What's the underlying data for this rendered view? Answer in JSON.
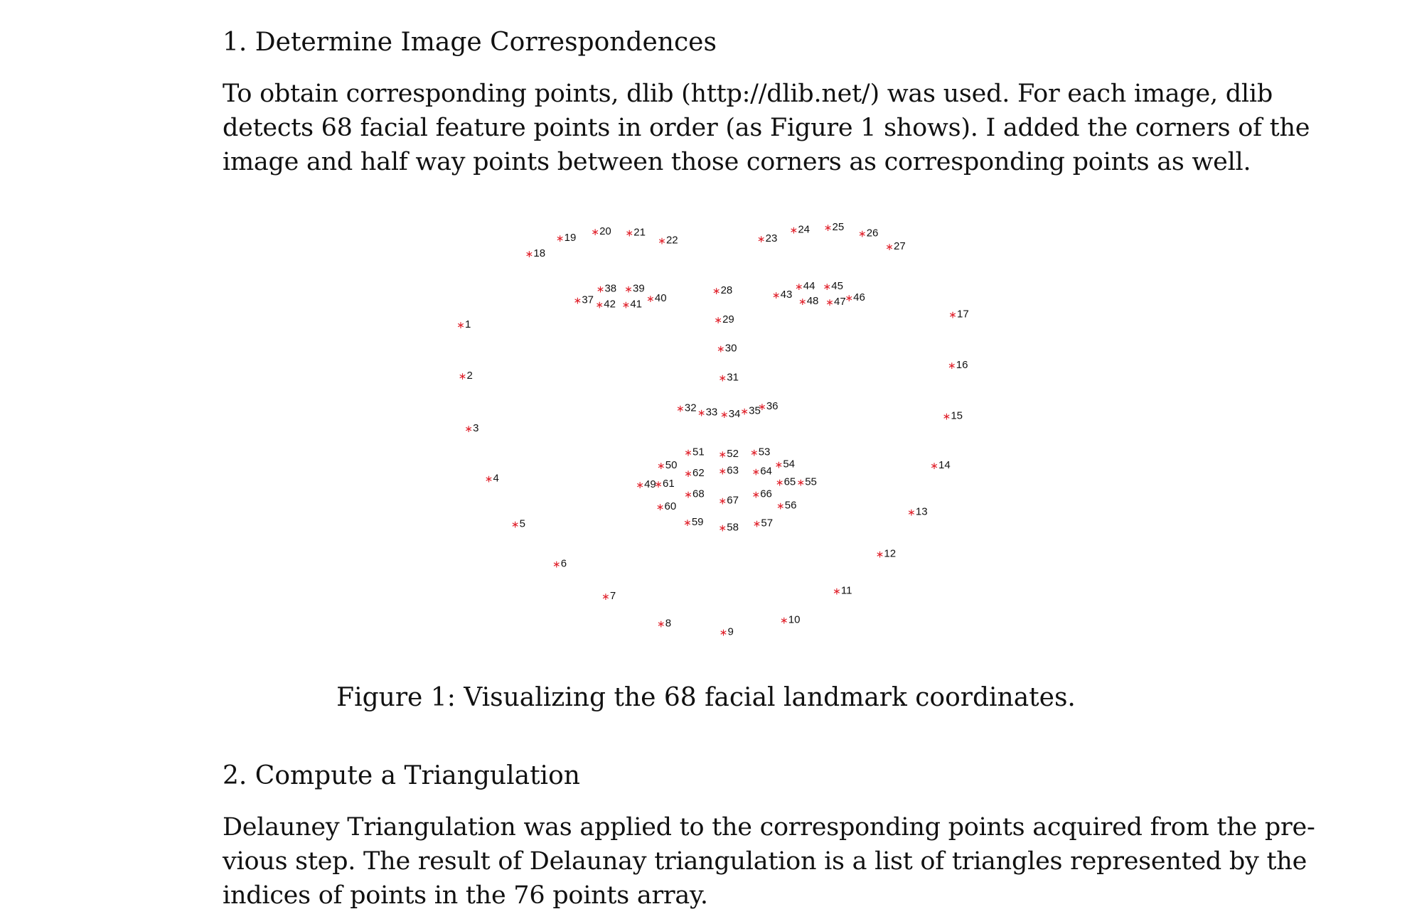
{
  "section1": {
    "heading": "1. Determine Image Correspondences",
    "paragraph_lines": [
      "To obtain corresponding points, dlib (http://dlib.net/) was used. For each image, dlib",
      "detects 68 facial feature points in order (as Figure 1 shows). I added the corners of the",
      "image and half way points between those corners as corresponding points as well."
    ]
  },
  "figure": {
    "caption": "Figure 1: Visualizing the 68 facial landmark coordinates.",
    "marker_color": "#e0202a",
    "marker_glyph": "∗"
  },
  "chart_data": {
    "type": "scatter",
    "title": "",
    "xlabel": "",
    "ylabel": "",
    "grid": false,
    "axes_visible": false,
    "y_direction": "down",
    "points": [
      {
        "label": "1",
        "x": 0,
        "y": 102
      },
      {
        "label": "2",
        "x": 2,
        "y": 160
      },
      {
        "label": "3",
        "x": 9,
        "y": 220
      },
      {
        "label": "4",
        "x": 32,
        "y": 277
      },
      {
        "label": "5",
        "x": 62,
        "y": 329
      },
      {
        "label": "6",
        "x": 109,
        "y": 374
      },
      {
        "label": "7",
        "x": 165,
        "y": 411
      },
      {
        "label": "8",
        "x": 228,
        "y": 442
      },
      {
        "label": "9",
        "x": 299,
        "y": 452
      },
      {
        "label": "10",
        "x": 368,
        "y": 438
      },
      {
        "label": "11",
        "x": 428,
        "y": 405
      },
      {
        "label": "12",
        "x": 477,
        "y": 363
      },
      {
        "label": "13",
        "x": 513,
        "y": 315
      },
      {
        "label": "14",
        "x": 539,
        "y": 262
      },
      {
        "label": "15",
        "x": 553,
        "y": 206
      },
      {
        "label": "16",
        "x": 559,
        "y": 148
      },
      {
        "label": "17",
        "x": 560,
        "y": 90
      },
      {
        "label": "18",
        "x": 78,
        "y": 21
      },
      {
        "label": "19",
        "x": 113,
        "y": 3
      },
      {
        "label": "20",
        "x": 153,
        "y": -4
      },
      {
        "label": "21",
        "x": 192,
        "y": -3
      },
      {
        "label": "22",
        "x": 229,
        "y": 6
      },
      {
        "label": "23",
        "x": 342,
        "y": 4
      },
      {
        "label": "24",
        "x": 379,
        "y": -6
      },
      {
        "label": "25",
        "x": 418,
        "y": -9
      },
      {
        "label": "26",
        "x": 457,
        "y": -2
      },
      {
        "label": "27",
        "x": 488,
        "y": 13
      },
      {
        "label": "28",
        "x": 291,
        "y": 63
      },
      {
        "label": "29",
        "x": 293,
        "y": 96
      },
      {
        "label": "30",
        "x": 296,
        "y": 129
      },
      {
        "label": "31",
        "x": 298,
        "y": 162
      },
      {
        "label": "32",
        "x": 250,
        "y": 197
      },
      {
        "label": "33",
        "x": 274,
        "y": 202
      },
      {
        "label": "34",
        "x": 300,
        "y": 204
      },
      {
        "label": "35",
        "x": 323,
        "y": 200
      },
      {
        "label": "36",
        "x": 343,
        "y": 195
      },
      {
        "label": "37",
        "x": 133,
        "y": 74
      },
      {
        "label": "38",
        "x": 159,
        "y": 61
      },
      {
        "label": "39",
        "x": 191,
        "y": 61
      },
      {
        "label": "40",
        "x": 216,
        "y": 72
      },
      {
        "label": "41",
        "x": 188,
        "y": 79
      },
      {
        "label": "42",
        "x": 158,
        "y": 79
      },
      {
        "label": "43",
        "x": 359,
        "y": 68
      },
      {
        "label": "44",
        "x": 385,
        "y": 58
      },
      {
        "label": "45",
        "x": 417,
        "y": 58
      },
      {
        "label": "46",
        "x": 442,
        "y": 71
      },
      {
        "label": "47",
        "x": 420,
        "y": 76
      },
      {
        "label": "48",
        "x": 389,
        "y": 75
      },
      {
        "label": "49",
        "x": 204,
        "y": 284
      },
      {
        "label": "50",
        "x": 228,
        "y": 262
      },
      {
        "label": "51",
        "x": 259,
        "y": 247
      },
      {
        "label": "52",
        "x": 298,
        "y": 249
      },
      {
        "label": "53",
        "x": 334,
        "y": 247
      },
      {
        "label": "54",
        "x": 362,
        "y": 261
      },
      {
        "label": "55",
        "x": 387,
        "y": 281
      },
      {
        "label": "56",
        "x": 364,
        "y": 308
      },
      {
        "label": "57",
        "x": 337,
        "y": 328
      },
      {
        "label": "58",
        "x": 298,
        "y": 333
      },
      {
        "label": "59",
        "x": 258,
        "y": 327
      },
      {
        "label": "60",
        "x": 227,
        "y": 309
      },
      {
        "label": "61",
        "x": 225,
        "y": 283
      },
      {
        "label": "62",
        "x": 259,
        "y": 271
      },
      {
        "label": "63",
        "x": 298,
        "y": 268
      },
      {
        "label": "64",
        "x": 336,
        "y": 269
      },
      {
        "label": "65",
        "x": 363,
        "y": 281
      },
      {
        "label": "66",
        "x": 336,
        "y": 295
      },
      {
        "label": "67",
        "x": 298,
        "y": 302
      },
      {
        "label": "68",
        "x": 259,
        "y": 295
      }
    ]
  },
  "section2": {
    "heading": "2. Compute a Triangulation",
    "paragraph_lines": [
      "Delauney Triangulation was applied to the corresponding points acquired from the pre-",
      "vious step. The result of Delaunay triangulation is a list of triangles represented by the",
      "indices of points in the 76 points array."
    ]
  }
}
